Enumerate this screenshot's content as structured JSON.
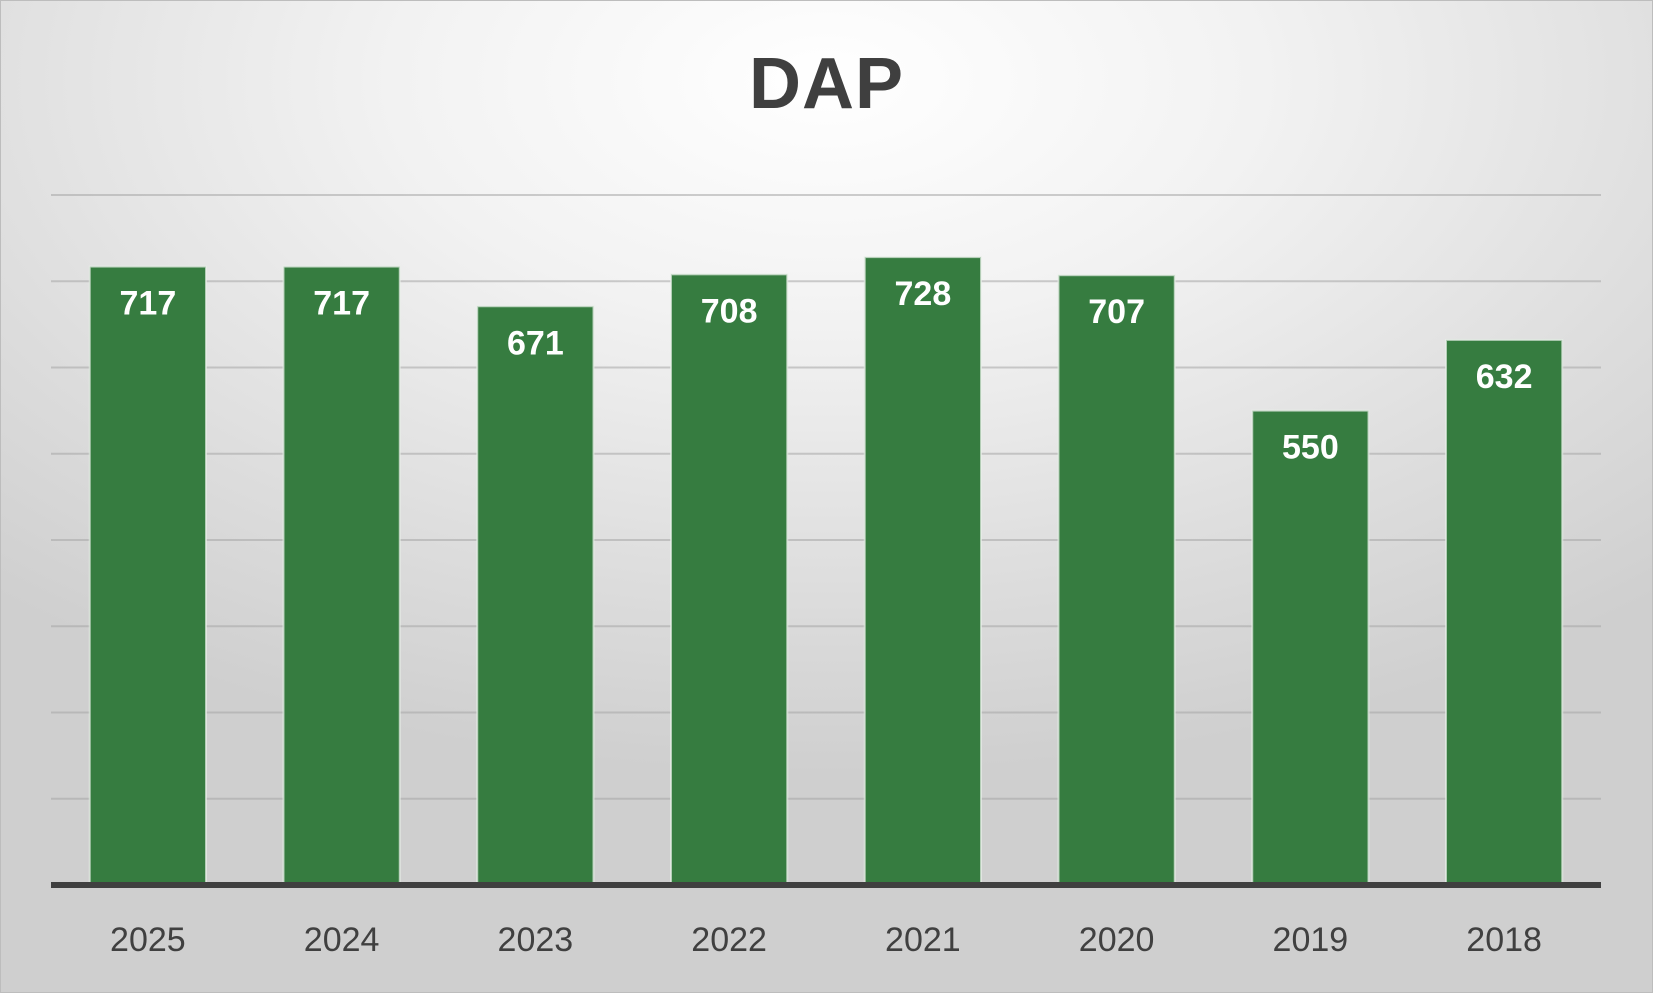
{
  "chart_data": {
    "type": "bar",
    "title": "DAP",
    "categories": [
      "2025",
      "2024",
      "2023",
      "2022",
      "2021",
      "2020",
      "2019",
      "2018"
    ],
    "values": [
      717,
      717,
      671,
      708,
      728,
      707,
      550,
      632
    ],
    "xlabel": "",
    "ylabel": "",
    "ylim": [
      0,
      800
    ],
    "grid": true,
    "data_labels": true,
    "bar_color": "#367c40",
    "axis_color": "#404040"
  }
}
